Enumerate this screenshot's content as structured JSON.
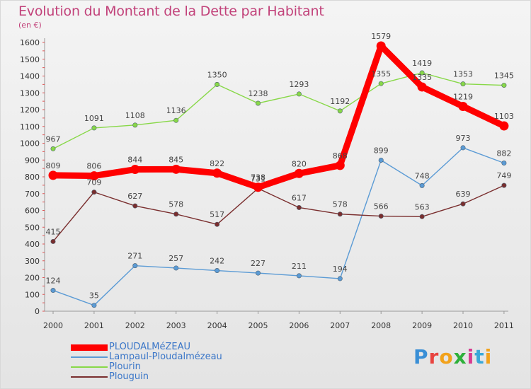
{
  "title": "Evolution du Montant de la Dette par Habitant",
  "subtitle": "(en €)",
  "logo": {
    "text": "Proxiti",
    "colors": [
      "#3a8fd6",
      "#e8433f",
      "#f2a21b",
      "#2eb03a",
      "#d83a8f",
      "#39a8d8",
      "#f2a21b"
    ]
  },
  "chart_data": {
    "type": "line",
    "categories": [
      "2000",
      "2001",
      "2002",
      "2003",
      "2004",
      "2005",
      "2006",
      "2007",
      "2008",
      "2009",
      "2010",
      "2011"
    ],
    "ylim": [
      0,
      1600
    ],
    "yticks": [
      0,
      100,
      200,
      300,
      400,
      500,
      600,
      700,
      800,
      900,
      1000,
      1100,
      1200,
      1300,
      1400,
      1500,
      1600
    ],
    "grid": false,
    "legend_position": "bottom-left",
    "series": [
      {
        "name": "PLOUDALMéZEAU",
        "color": "#ff0000",
        "width": "thick",
        "values": [
          809,
          806,
          844,
          845,
          822,
          738,
          820,
          868,
          1579,
          1335,
          1219,
          1103
        ]
      },
      {
        "name": "Lampaul-Ploudalmézeau",
        "color": "#5b9bd5",
        "width": "thin",
        "values": [
          124,
          35,
          271,
          257,
          242,
          227,
          211,
          194,
          899,
          748,
          973,
          882
        ]
      },
      {
        "name": "Plourin",
        "color": "#88d848",
        "width": "thin",
        "values": [
          967,
          1091,
          1108,
          1136,
          1350,
          1238,
          1293,
          1192,
          1355,
          1419,
          1353,
          1345
        ]
      },
      {
        "name": "Plouguin",
        "color": "#7a2e2e",
        "width": "thin",
        "values": [
          415,
          709,
          627,
          578,
          517,
          731,
          617,
          578,
          566,
          563,
          639,
          749
        ]
      }
    ]
  }
}
